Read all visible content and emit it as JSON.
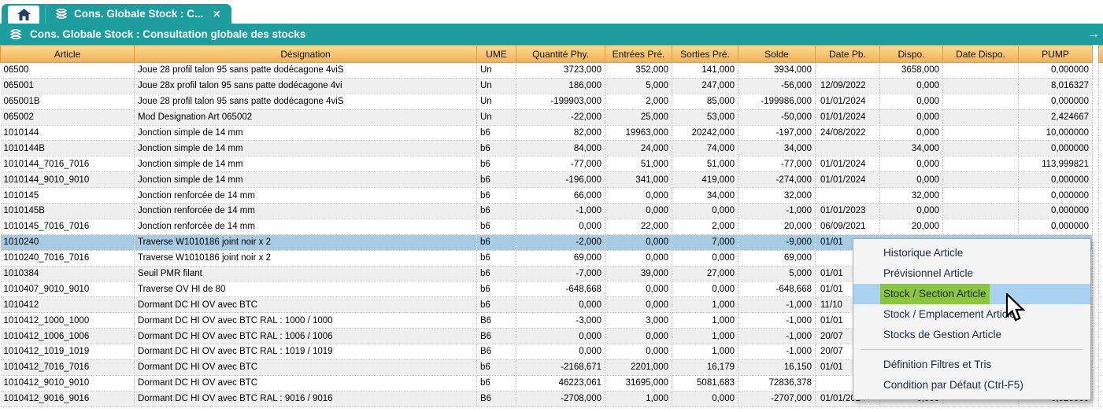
{
  "window": {
    "tab_label": "Cons. Globale Stock : C...",
    "tab_close": "✕",
    "title": "Cons. Globale Stock : Consultation globale des stocks",
    "overflow_arrow": "→"
  },
  "colors": {
    "teal": "#1d9d9d",
    "header_top": "#fdda92",
    "header_bottom": "#f1b055",
    "zebra_gray": "#efefef",
    "selection_blue": "#a8cbe4",
    "menu_highlight_blue": "#a9d2f3",
    "menu_highlight_green": "#8cc640"
  },
  "table": {
    "columns": [
      "Article",
      "Désignation",
      "UME",
      "Quantité Phy.",
      "Entrées Pré.",
      "Sorties Pré.",
      "Solde",
      "Date Pb.",
      "Dispo.",
      "Date Dispo.",
      "PUMP"
    ],
    "rows": [
      {
        "article": "06500",
        "designation": "Joue 28 profil talon 95 sans patte dodécagone 4viS",
        "ume": "Un",
        "qty_phy": "3723,000",
        "entrees_pre": "352,000",
        "sorties_pre": "141,000",
        "solde": "3934,000",
        "date_pb": "",
        "dispo": "3658,000",
        "date_dispo": "",
        "pump": "0,000000"
      },
      {
        "article": "065001",
        "designation": "Joue 28x profil talon 95 sans patte dodécagone 4vi",
        "ume": "Un",
        "qty_phy": "186,000",
        "entrees_pre": "5,000",
        "sorties_pre": "247,000",
        "solde": "-56,000",
        "date_pb": "12/09/2022",
        "dispo": "0,000",
        "date_dispo": "",
        "pump": "8,016327"
      },
      {
        "article": "065001B",
        "designation": "Joue 28 profil talon 95 sans patte dodécagone 4viS",
        "ume": "Un",
        "qty_phy": "-199903,000",
        "entrees_pre": "2,000",
        "sorties_pre": "85,000",
        "solde": "-199986,000",
        "date_pb": "01/01/2024",
        "dispo": "0,000",
        "date_dispo": "",
        "pump": "0,000000"
      },
      {
        "article": "065002",
        "designation": "Mod Designation Art 065002",
        "ume": "Un",
        "qty_phy": "-22,000",
        "entrees_pre": "25,000",
        "sorties_pre": "53,000",
        "solde": "-50,000",
        "date_pb": "01/01/2024",
        "dispo": "0,000",
        "date_dispo": "",
        "pump": "2,424667"
      },
      {
        "article": "1010144",
        "designation": "Jonction simple de 14 mm",
        "ume": "b6",
        "qty_phy": "82,000",
        "entrees_pre": "19963,000",
        "sorties_pre": "20242,000",
        "solde": "-197,000",
        "date_pb": "24/08/2022",
        "dispo": "0,000",
        "date_dispo": "",
        "pump": "10,000000"
      },
      {
        "article": "1010144B",
        "designation": "Jonction simple de 14 mm",
        "ume": "b6",
        "qty_phy": "84,000",
        "entrees_pre": "24,000",
        "sorties_pre": "74,000",
        "solde": "34,000",
        "date_pb": "",
        "dispo": "34,000",
        "date_dispo": "",
        "pump": "0,000000"
      },
      {
        "article": "1010144_7016_7016",
        "designation": "Jonction simple de 14 mm",
        "ume": "b6",
        "qty_phy": "-77,000",
        "entrees_pre": "51,000",
        "sorties_pre": "51,000",
        "solde": "-77,000",
        "date_pb": "01/01/2024",
        "dispo": "0,000",
        "date_dispo": "",
        "pump": "113,999821"
      },
      {
        "article": "1010144_9010_9010",
        "designation": "Jonction simple de 14 mm",
        "ume": "b6",
        "qty_phy": "-196,000",
        "entrees_pre": "341,000",
        "sorties_pre": "419,000",
        "solde": "-274,000",
        "date_pb": "01/01/2024",
        "dispo": "0,000",
        "date_dispo": "",
        "pump": "0,000000"
      },
      {
        "article": "1010145",
        "designation": "Jonction renforcée de 14 mm",
        "ume": "b6",
        "qty_phy": "66,000",
        "entrees_pre": "0,000",
        "sorties_pre": "34,000",
        "solde": "32,000",
        "date_pb": "",
        "dispo": "32,000",
        "date_dispo": "",
        "pump": "0,000000"
      },
      {
        "article": "1010145B",
        "designation": "Jonction renforcée de 14 mm",
        "ume": "b6",
        "qty_phy": "-1,000",
        "entrees_pre": "0,000",
        "sorties_pre": "0,000",
        "solde": "-1,000",
        "date_pb": "01/01/2023",
        "dispo": "0,000",
        "date_dispo": "",
        "pump": "0,000000"
      },
      {
        "article": "1010145_7016_7016",
        "designation": "Jonction renforcée de 14 mm",
        "ume": "b6",
        "qty_phy": "0,000",
        "entrees_pre": "22,000",
        "sorties_pre": "2,000",
        "solde": "20,000",
        "date_pb": "06/09/2021",
        "dispo": "20,000",
        "date_dispo": "",
        "pump": "0,000000"
      },
      {
        "article": "1010240",
        "designation": "Traverse W1010186 joint noir x 2",
        "ume": "b6",
        "qty_phy": "-2,000",
        "entrees_pre": "0,000",
        "sorties_pre": "7,000",
        "solde": "-9,000",
        "date_pb": "01/01",
        "dispo": "",
        "date_dispo": "",
        "pump": "",
        "selected": true
      },
      {
        "article": "1010240_7016_7016",
        "designation": "Traverse W1010186 joint noir x 2",
        "ume": "b6",
        "qty_phy": "69,000",
        "entrees_pre": "0,000",
        "sorties_pre": "0,000",
        "solde": "69,000",
        "date_pb": "",
        "dispo": "",
        "date_dispo": "",
        "pump": ""
      },
      {
        "article": "1010384",
        "designation": "Seuil PMR filant",
        "ume": "b6",
        "qty_phy": "-7,000",
        "entrees_pre": "39,000",
        "sorties_pre": "27,000",
        "solde": "5,000",
        "date_pb": "01/01",
        "dispo": "",
        "date_dispo": "",
        "pump": ""
      },
      {
        "article": "1010407_9010_9010",
        "designation": "Traverse OV HI de 80",
        "ume": "b6",
        "qty_phy": "-648,668",
        "entrees_pre": "0,000",
        "sorties_pre": "0,000",
        "solde": "-648,668",
        "date_pb": "01/01",
        "dispo": "",
        "date_dispo": "",
        "pump": ""
      },
      {
        "article": "1010412",
        "designation": "Dormant DC HI OV avec BTC",
        "ume": "b6",
        "qty_phy": "0,000",
        "entrees_pre": "0,000",
        "sorties_pre": "1,000",
        "solde": "-1,000",
        "date_pb": "11/10",
        "dispo": "",
        "date_dispo": "",
        "pump": ""
      },
      {
        "article": "1010412_1000_1000",
        "designation": "Dormant DC HI OV avec BTC RAL : 1000 / 1000",
        "ume": "B6",
        "qty_phy": "-3,000",
        "entrees_pre": "3,000",
        "sorties_pre": "1,000",
        "solde": "-1,000",
        "date_pb": "01/01",
        "dispo": "",
        "date_dispo": "",
        "pump": ""
      },
      {
        "article": "1010412_1006_1006",
        "designation": "Dormant DC HI OV avec BTC RAL : 1006 / 1006",
        "ume": "B6",
        "qty_phy": "0,000",
        "entrees_pre": "0,000",
        "sorties_pre": "1,000",
        "solde": "-1,000",
        "date_pb": "20/07",
        "dispo": "",
        "date_dispo": "",
        "pump": ""
      },
      {
        "article": "1010412_1019_1019",
        "designation": "Dormant DC HI OV avec BTC RAL : 1019 / 1019",
        "ume": "B6",
        "qty_phy": "0,000",
        "entrees_pre": "0,000",
        "sorties_pre": "1,000",
        "solde": "-1,000",
        "date_pb": "20/07",
        "dispo": "",
        "date_dispo": "",
        "pump": ""
      },
      {
        "article": "1010412_7016_7016",
        "designation": "Dormant DC HI OV avec BTC",
        "ume": "b6",
        "qty_phy": "-2168,671",
        "entrees_pre": "2201,000",
        "sorties_pre": "16,179",
        "solde": "16,150",
        "date_pb": "01/01",
        "dispo": "",
        "date_dispo": "",
        "pump": ""
      },
      {
        "article": "1010412_9010_9010",
        "designation": "Dormant DC HI OV avec BTC",
        "ume": "b6",
        "qty_phy": "46223,061",
        "entrees_pre": "31695,000",
        "sorties_pre": "5081,683",
        "solde": "72836,378",
        "date_pb": "",
        "dispo": "",
        "date_dispo": "",
        "pump": ""
      },
      {
        "article": "1010412_9016_9016",
        "designation": "Dormant DC HI OV avec BTC RAL : 9016 / 9016",
        "ume": "B6",
        "qty_phy": "-2708,000",
        "entrees_pre": "1,000",
        "sorties_pre": "0,000",
        "solde": "-2707,000",
        "date_pb": "01/01/2024",
        "dispo": "0,000",
        "date_dispo": "",
        "pump": "0,520000"
      }
    ]
  },
  "context_menu": {
    "items": [
      {
        "label": "Historique Article"
      },
      {
        "label": "Prévisionnel Article"
      },
      {
        "label": "Stock / Section Article",
        "highlighted": true
      },
      {
        "label": "Stock / Emplacement Article"
      },
      {
        "label": "Stocks de Gestion Article"
      },
      {
        "separator": true
      },
      {
        "label": "Définition Filtres et Tris"
      },
      {
        "label": "Condition par Défaut (Ctrl-F5)"
      }
    ]
  }
}
